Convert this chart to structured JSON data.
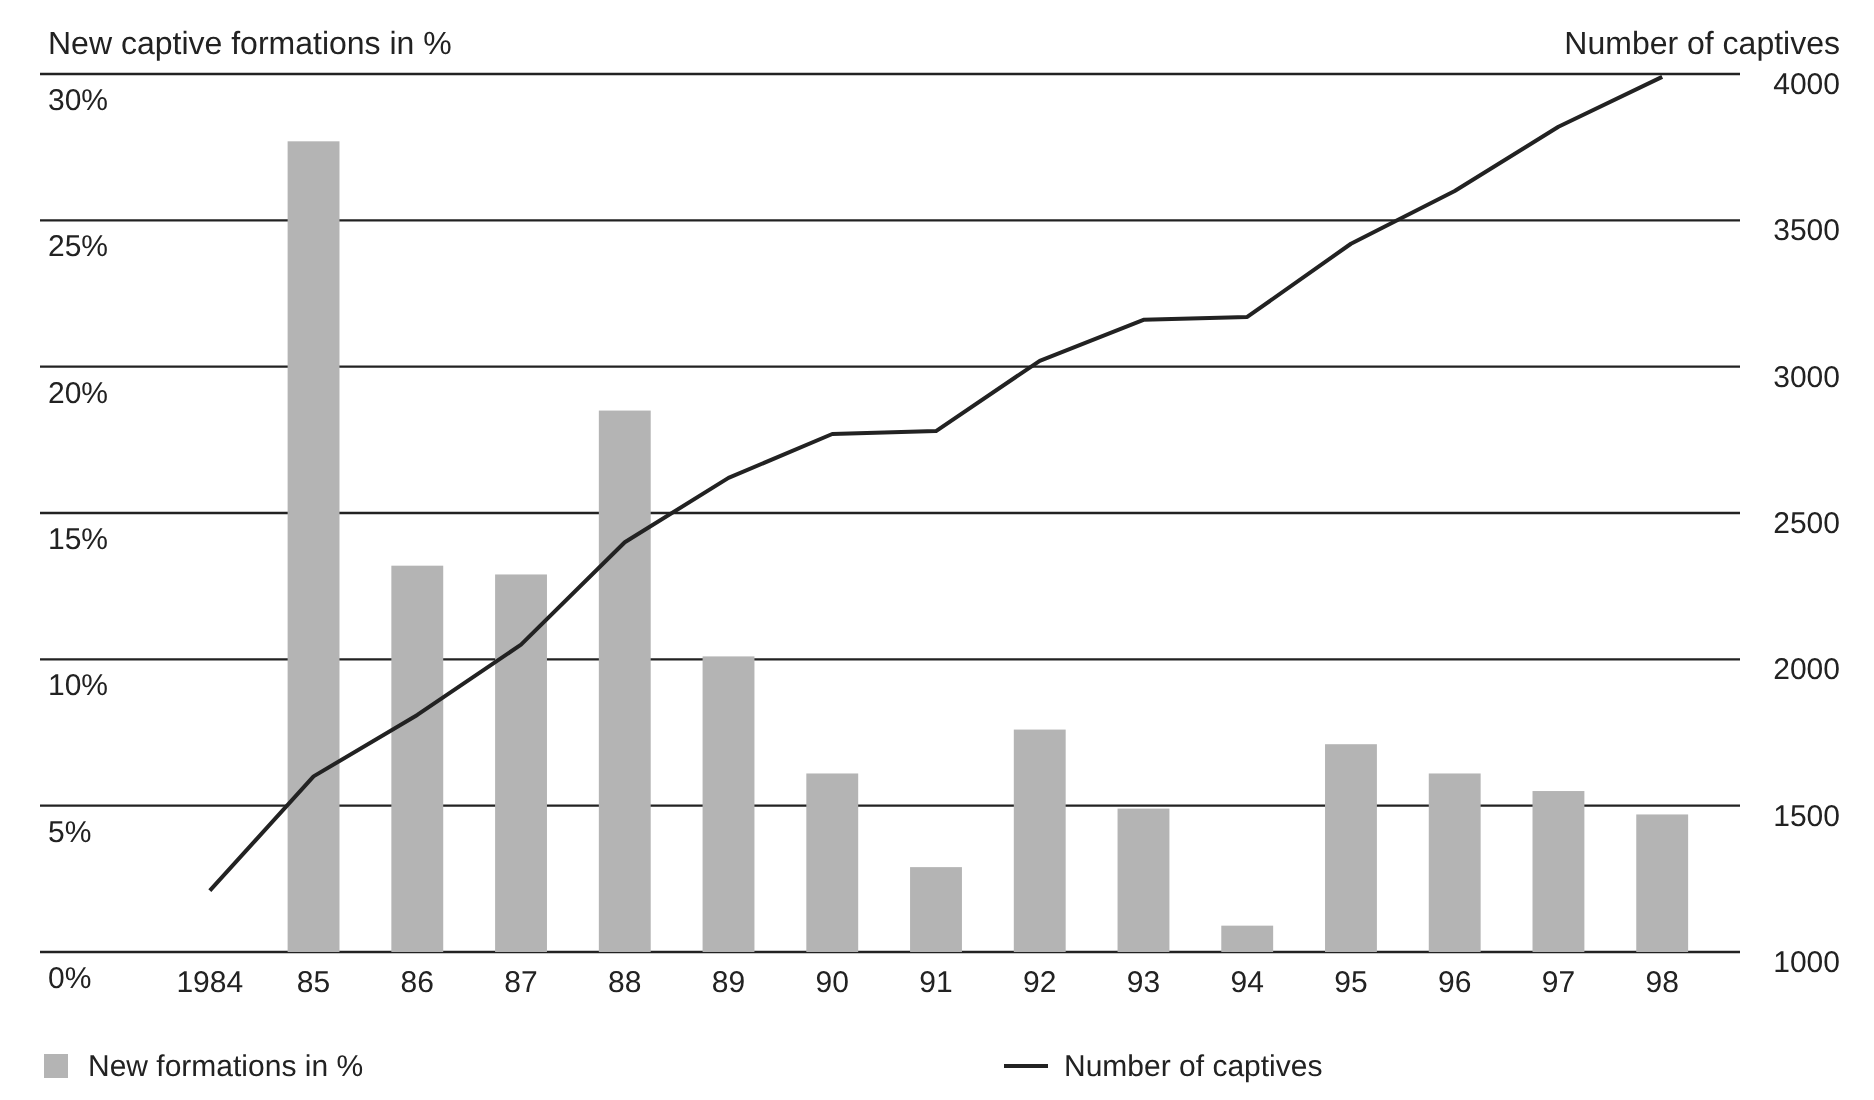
{
  "chart_data": {
    "type": "bar",
    "ylabel": "New captive formations in %",
    "y2label": "Number of captives",
    "categories": [
      "1984",
      "85",
      "86",
      "87",
      "88",
      "89",
      "90",
      "91",
      "92",
      "93",
      "94",
      "95",
      "96",
      "97",
      "98"
    ],
    "series": [
      {
        "name": "New formations in %",
        "color": "#b4b4b4",
        "values": [
          null,
          27.7,
          13.2,
          12.9,
          18.5,
          10.1,
          6.1,
          2.9,
          7.6,
          4.9,
          0.9,
          7.1,
          6.1,
          5.5,
          4.7
        ]
      },
      {
        "name": "Number of captives",
        "type": "line",
        "axis": "y2",
        "color": "#222222",
        "values": [
          1210,
          1600,
          1810,
          2050,
          2400,
          2620,
          2770,
          2780,
          3020,
          3160,
          3170,
          3420,
          3600,
          3820,
          3990
        ]
      }
    ],
    "ylim": [
      0,
      30
    ],
    "yticks": [
      {
        "value": 0,
        "label": "0%"
      },
      {
        "value": 5,
        "label": "5%"
      },
      {
        "value": 10,
        "label": "10%"
      },
      {
        "value": 15,
        "label": "15%"
      },
      {
        "value": 20,
        "label": "20%"
      },
      {
        "value": 25,
        "label": "25%"
      },
      {
        "value": 30,
        "label": "30%"
      }
    ],
    "y2lim": [
      1000,
      4000
    ],
    "y2ticks": [
      1000,
      1500,
      2000,
      2500,
      3000,
      3500,
      4000
    ],
    "grid": "y",
    "legend": "bottom"
  }
}
